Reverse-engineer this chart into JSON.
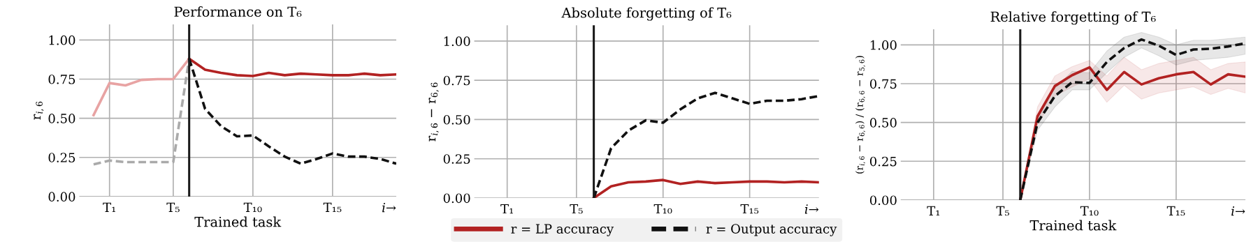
{
  "chart_data": [
    {
      "type": "line",
      "title": "Performance on T₆",
      "xlabel": "Trained task",
      "ylabel": "r$_{i,6}$",
      "ylim": [
        0,
        1.1
      ],
      "yticks": [
        {
          "value": 0,
          "label": "0.00"
        },
        {
          "value": 0.25,
          "label": "0.25"
        },
        {
          "value": 0.5,
          "label": "0.50"
        },
        {
          "value": 0.75,
          "label": "0.75"
        },
        {
          "value": 1,
          "label": "1.00"
        }
      ],
      "grid": true,
      "legend": false,
      "annotations": [
        "i→"
      ],
      "categories": [
        null,
        "T₁",
        null,
        null,
        null,
        "T₅",
        null,
        null,
        null,
        null,
        "T₁₀",
        null,
        null,
        null,
        null,
        "T₁₅",
        null,
        null,
        null,
        null
      ],
      "series": [
        {
          "color": "#e8a3a3",
          "line_style": "solid",
          "values": [
            0.52,
            0.725,
            0.71,
            0.745,
            0.75,
            0.75,
            0.88,
            null,
            null,
            null,
            null,
            null,
            null,
            null,
            null,
            null,
            null,
            null,
            null,
            null
          ]
        },
        {
          "color": "#aaaaaa",
          "line_style": "dashed",
          "values": [
            0.205,
            0.23,
            0.22,
            0.22,
            0.22,
            0.22,
            0.88,
            null,
            null,
            null,
            null,
            null,
            null,
            null,
            null,
            null,
            null,
            null,
            null,
            null
          ]
        },
        {
          "color": "#b22222",
          "line_style": "solid",
          "values": [
            null,
            null,
            null,
            null,
            null,
            null,
            0.88,
            0.81,
            0.79,
            0.775,
            0.77,
            0.79,
            0.775,
            0.785,
            0.78,
            0.775,
            0.775,
            0.785,
            0.775,
            0.78
          ]
        },
        {
          "color": "#111111",
          "line_style": "dashed",
          "values": [
            null,
            null,
            null,
            null,
            null,
            null,
            0.88,
            0.56,
            0.45,
            0.385,
            0.39,
            0.32,
            0.255,
            0.21,
            0.24,
            0.275,
            0.255,
            0.255,
            0.24,
            0.21
          ]
        }
      ]
    },
    {
      "type": "line",
      "title": "Absolute forgetting of T₆",
      "ylabel": "r$_{i,6}$ − r$_{6,6}$",
      "ylim": [
        0,
        1.1
      ],
      "yticks": [
        {
          "value": 0,
          "label": "0.00"
        },
        {
          "value": 0.25,
          "label": "0.25"
        },
        {
          "value": 0.5,
          "label": "0.50"
        },
        {
          "value": 0.75,
          "label": "0.75"
        },
        {
          "value": 1,
          "label": "1.00"
        }
      ],
      "grid": true,
      "legend": "bottom",
      "annotations": [
        "i→"
      ],
      "categories": [
        null,
        "T₁",
        null,
        null,
        null,
        "T₅",
        null,
        null,
        null,
        null,
        "T₁₀",
        null,
        null,
        null,
        null,
        "T₁₅",
        null,
        null,
        null,
        null
      ],
      "series": [
        {
          "name": "r = LP accuracy",
          "color": "#b22222",
          "line_style": "solid",
          "values": [
            null,
            null,
            null,
            null,
            null,
            null,
            0,
            0.075,
            0.1,
            0.105,
            0.115,
            0.09,
            0.105,
            0.095,
            0.1,
            0.105,
            0.105,
            0.1,
            0.105,
            0.1
          ]
        },
        {
          "name": "r = Output accuracy",
          "color": "#111111",
          "line_style": "dashed",
          "values": [
            null,
            null,
            null,
            null,
            null,
            null,
            0,
            0.317,
            0.43,
            0.495,
            0.48,
            0.565,
            0.635,
            0.67,
            0.635,
            0.6,
            0.62,
            0.62,
            0.63,
            0.65
          ]
        }
      ]
    },
    {
      "type": "line",
      "title": "Relative forgetting of T₆",
      "xlabel": "Trained task",
      "ylabel": "(r$_{i,6}$ − r$_{6,6}$) / (r$_{6,6}$ − r$_{5,6}$)",
      "ylim": [
        0,
        1.1
      ],
      "yticks": [
        {
          "value": 0,
          "label": "0.00"
        },
        {
          "value": 0.25,
          "label": "0.25"
        },
        {
          "value": 0.5,
          "label": "0.50"
        },
        {
          "value": 0.75,
          "label": "0.75"
        },
        {
          "value": 1,
          "label": "1.00"
        }
      ],
      "grid": true,
      "legend": false,
      "annotations": [
        "i→"
      ],
      "categories": [
        null,
        "T₁",
        null,
        null,
        null,
        "T₅",
        null,
        null,
        null,
        null,
        "T₁₀",
        null,
        null,
        null,
        null,
        "T₁₅",
        null,
        null,
        null,
        null
      ],
      "series": [
        {
          "color": "#b22222",
          "line_style": "solid",
          "values": [
            null,
            null,
            null,
            null,
            null,
            null,
            0,
            0.54,
            0.735,
            0.805,
            0.855,
            0.71,
            0.825,
            0.745,
            0.785,
            0.81,
            0.825,
            0.745,
            0.81,
            0.795
          ],
          "lower": [
            null,
            null,
            null,
            null,
            null,
            null,
            0,
            0.49,
            0.67,
            0.73,
            0.78,
            0.63,
            0.74,
            0.65,
            0.69,
            0.71,
            0.73,
            0.68,
            0.72,
            0.69
          ],
          "upper": [
            null,
            null,
            null,
            null,
            null,
            null,
            0,
            0.6,
            0.8,
            0.86,
            0.9,
            0.8,
            0.92,
            0.84,
            0.88,
            0.9,
            0.92,
            0.84,
            0.88,
            0.89
          ]
        },
        {
          "color": "#111111",
          "line_style": "dashed",
          "values": [
            null,
            null,
            null,
            null,
            null,
            null,
            0,
            0.5,
            0.67,
            0.76,
            0.755,
            0.89,
            0.98,
            1.035,
            0.995,
            0.935,
            0.97,
            0.975,
            0.99,
            1.01
          ],
          "lower": [
            null,
            null,
            null,
            null,
            null,
            null,
            0,
            0.45,
            0.6,
            0.71,
            0.71,
            0.82,
            0.92,
            0.98,
            0.93,
            0.87,
            0.9,
            0.91,
            0.92,
            0.94
          ],
          "upper": [
            null,
            null,
            null,
            null,
            null,
            null,
            0,
            0.55,
            0.72,
            0.83,
            0.82,
            0.96,
            1.05,
            1.08,
            1.05,
            1.0,
            1.03,
            1.03,
            1.04,
            1.05
          ]
        }
      ]
    }
  ]
}
